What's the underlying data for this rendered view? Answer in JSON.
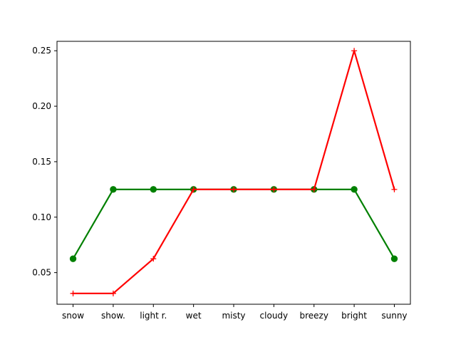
{
  "chart_data": {
    "type": "line",
    "title": "",
    "xlabel": "",
    "ylabel": "",
    "categories": [
      "snow",
      "show.",
      "light r.",
      "wet",
      "misty",
      "cloudy",
      "breezy",
      "bright",
      "sunny"
    ],
    "ylim": [
      0.0215,
      0.2585
    ],
    "yticks": [
      "0.05",
      "0.10",
      "0.15",
      "0.20",
      "0.25"
    ],
    "grid": false,
    "legend": "none",
    "series": [
      {
        "color": "#008000",
        "marker": "circle",
        "values": [
          0.0625,
          0.125,
          0.125,
          0.125,
          0.125,
          0.125,
          0.125,
          0.125,
          0.0625
        ]
      },
      {
        "color": "#ff0000",
        "marker": "plus",
        "values": [
          0.03125,
          0.03125,
          0.0625,
          0.125,
          0.125,
          0.125,
          0.125,
          0.25,
          0.125
        ]
      }
    ]
  }
}
